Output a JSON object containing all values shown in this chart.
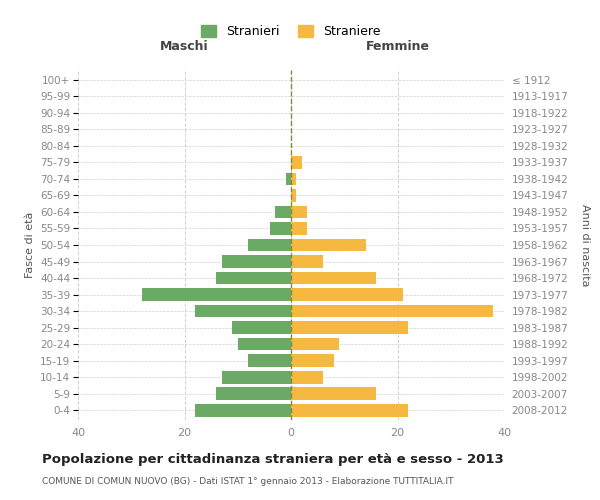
{
  "age_groups": [
    "0-4",
    "5-9",
    "10-14",
    "15-19",
    "20-24",
    "25-29",
    "30-34",
    "35-39",
    "40-44",
    "45-49",
    "50-54",
    "55-59",
    "60-64",
    "65-69",
    "70-74",
    "75-79",
    "80-84",
    "85-89",
    "90-94",
    "95-99",
    "100+"
  ],
  "birth_years": [
    "2008-2012",
    "2003-2007",
    "1998-2002",
    "1993-1997",
    "1988-1992",
    "1983-1987",
    "1978-1982",
    "1973-1977",
    "1968-1972",
    "1963-1967",
    "1958-1962",
    "1953-1957",
    "1948-1952",
    "1943-1947",
    "1938-1942",
    "1933-1937",
    "1928-1932",
    "1923-1927",
    "1918-1922",
    "1913-1917",
    "≤ 1912"
  ],
  "males": [
    18,
    14,
    13,
    8,
    10,
    11,
    18,
    28,
    14,
    13,
    8,
    4,
    3,
    0,
    1,
    0,
    0,
    0,
    0,
    0,
    0
  ],
  "females": [
    22,
    16,
    6,
    8,
    9,
    22,
    38,
    21,
    16,
    6,
    14,
    3,
    3,
    1,
    1,
    2,
    0,
    0,
    0,
    0,
    0
  ],
  "male_color": "#6aaa64",
  "female_color": "#f5b942",
  "male_label": "Stranieri",
  "female_label": "Straniere",
  "title": "Popolazione per cittadinanza straniera per età e sesso - 2013",
  "subtitle": "COMUNE DI COMUN NUOVO (BG) - Dati ISTAT 1° gennaio 2013 - Elaborazione TUTTITALIA.IT",
  "xlabel_left": "Maschi",
  "xlabel_right": "Femmine",
  "ylabel_left": "Fasce di età",
  "ylabel_right": "Anni di nascita",
  "xlim": 40,
  "background_color": "#ffffff",
  "grid_color": "#cccccc",
  "tick_color": "#888888"
}
